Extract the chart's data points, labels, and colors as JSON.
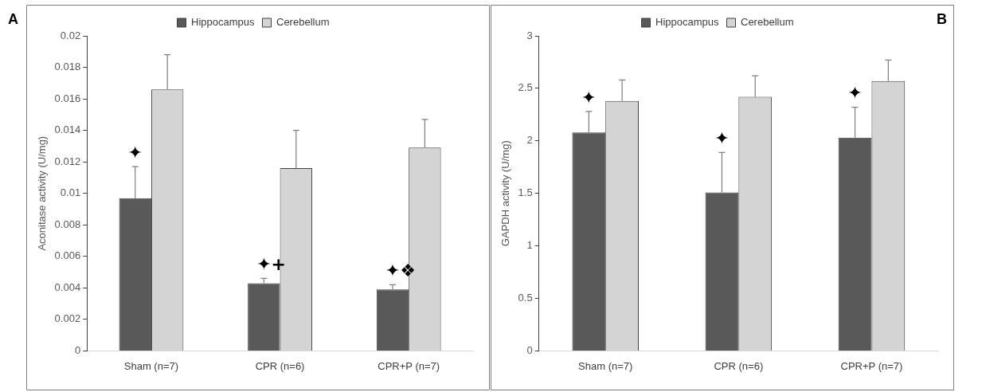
{
  "chart_data": [
    {
      "type": "bar",
      "title": "A",
      "ylabel": "Aconitase activity (U/mg)",
      "categories": [
        "Sham (n=7)",
        "CPR (n=6)",
        "CPR+P (n=7)"
      ],
      "series": [
        {
          "name": "Hippocampus",
          "color": "#595959",
          "values": [
            0.0097,
            0.0043,
            0.0039
          ],
          "errors": [
            [
              0.0097,
              0.0117
            ],
            [
              0.0043,
              0.0046
            ],
            [
              0.0039,
              0.0042
            ]
          ]
        },
        {
          "name": "Cerebellum",
          "color": "#d4d4d4",
          "values": [
            0.0166,
            0.0116,
            0.0129
          ],
          "errors": [
            [
              0.0166,
              0.0188
            ],
            [
              0.0116,
              0.014
            ],
            [
              0.0129,
              0.0147
            ]
          ]
        }
      ],
      "ylim": [
        0,
        0.02
      ],
      "yticks": [
        0,
        0.002,
        0.004,
        0.006,
        0.008,
        0.01,
        0.012,
        0.014,
        0.016,
        0.018,
        0.02
      ],
      "grid": false,
      "legend": "top",
      "annotations": [
        {
          "text": "✦",
          "x": "Sham (n=7)",
          "y": 0.0117
        },
        {
          "text": "✦+",
          "x": "CPR (n=6)",
          "y": 0.0046
        },
        {
          "text": "✦❖",
          "x": "CPR+P (n=7)",
          "y": 0.0042
        }
      ]
    },
    {
      "type": "bar",
      "title": "B",
      "ylabel": "GAPDH activity (U/mg)",
      "categories": [
        "Sham (n=7)",
        "CPR (n=6)",
        "CPR+P (n=7)"
      ],
      "series": [
        {
          "name": "Hippocampus",
          "color": "#595959",
          "values": [
            2.08,
            1.51,
            2.03
          ],
          "errors": [
            [
              2.08,
              2.28
            ],
            [
              1.51,
              1.89
            ],
            [
              2.03,
              2.32
            ]
          ]
        },
        {
          "name": "Cerebellum",
          "color": "#d4d4d4",
          "values": [
            2.38,
            2.42,
            2.57
          ],
          "errors": [
            [
              2.38,
              2.58
            ],
            [
              2.42,
              2.62
            ],
            [
              2.57,
              2.77
            ]
          ]
        }
      ],
      "ylim": [
        0,
        3
      ],
      "yticks": [
        0,
        0.5,
        1,
        1.5,
        2,
        2.5,
        3
      ],
      "grid": false,
      "legend": "top",
      "annotations": [
        {
          "text": "✦",
          "x": "Sham (n=7)",
          "y": 2.28
        },
        {
          "text": "✦",
          "x": "CPR (n=6)",
          "y": 1.89
        },
        {
          "text": "✦",
          "x": "CPR+P (n=7)",
          "y": 2.32
        }
      ]
    }
  ]
}
